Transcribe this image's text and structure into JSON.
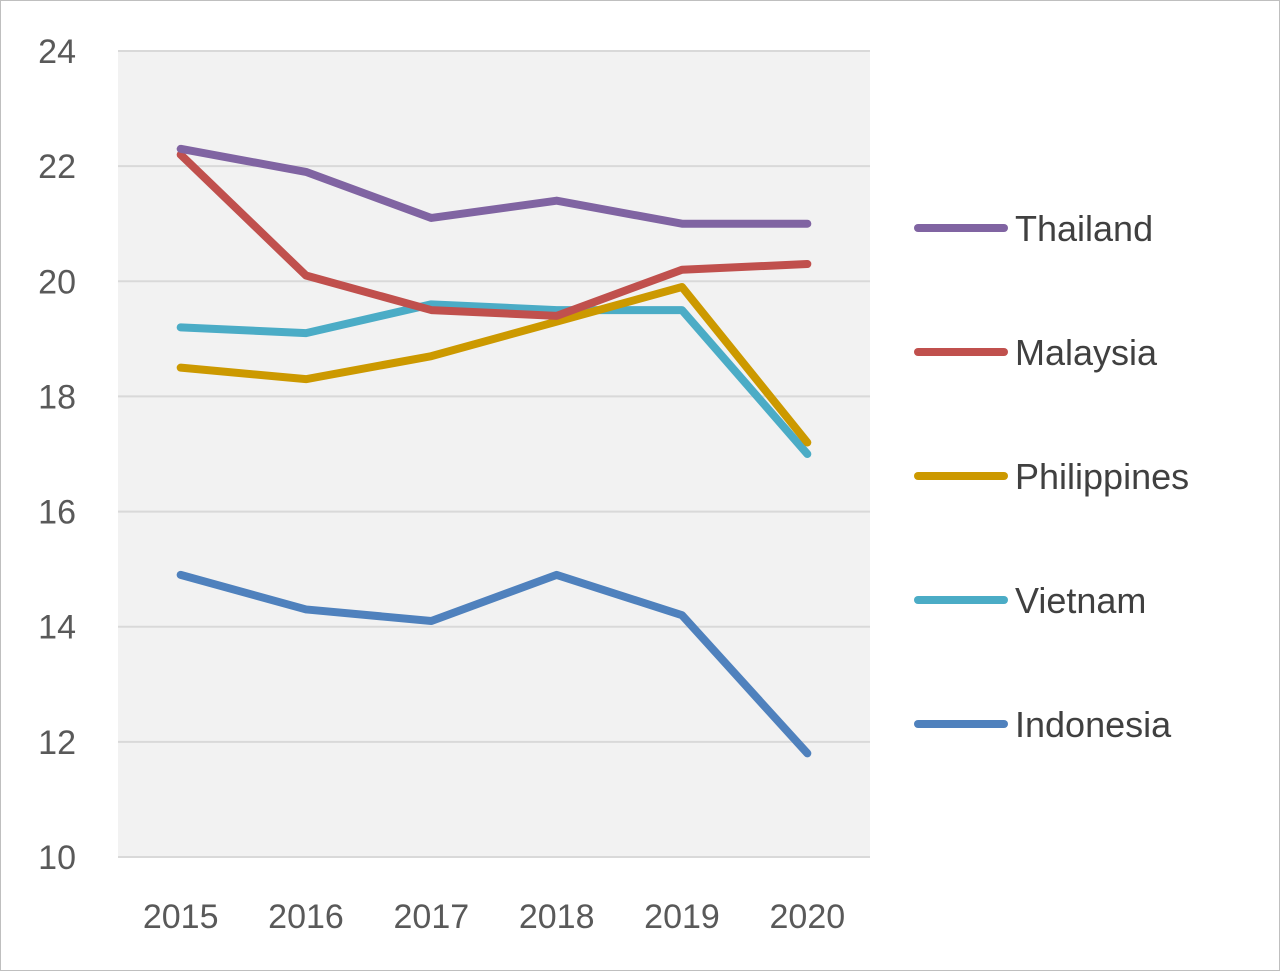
{
  "chart_data": {
    "type": "line",
    "title": "",
    "xlabel": "",
    "ylabel": "",
    "categories": [
      "2015",
      "2016",
      "2017",
      "2018",
      "2019",
      "2020"
    ],
    "ylim": [
      10,
      24
    ],
    "yticks": [
      10,
      12,
      14,
      16,
      18,
      20,
      22,
      24
    ],
    "grid": true,
    "legend_position": "right",
    "plot_background": "#f2f2f2",
    "series": [
      {
        "name": "Thailand",
        "color": "#8064a2",
        "values": [
          22.3,
          21.9,
          21.1,
          21.4,
          21.0,
          21.0
        ]
      },
      {
        "name": "Malaysia",
        "color": "#c0504d",
        "values": [
          22.2,
          20.1,
          19.5,
          19.4,
          20.2,
          20.3
        ]
      },
      {
        "name": "Philippines",
        "color": "#cc9900",
        "values": [
          18.5,
          18.3,
          18.7,
          19.3,
          19.9,
          17.2
        ]
      },
      {
        "name": "Vietnam",
        "color": "#4bacc6",
        "values": [
          19.2,
          19.1,
          19.6,
          19.5,
          19.5,
          17.0
        ]
      },
      {
        "name": "Indonesia",
        "color": "#4f81bd",
        "values": [
          14.9,
          14.3,
          14.1,
          14.9,
          14.2,
          11.8
        ]
      }
    ]
  }
}
